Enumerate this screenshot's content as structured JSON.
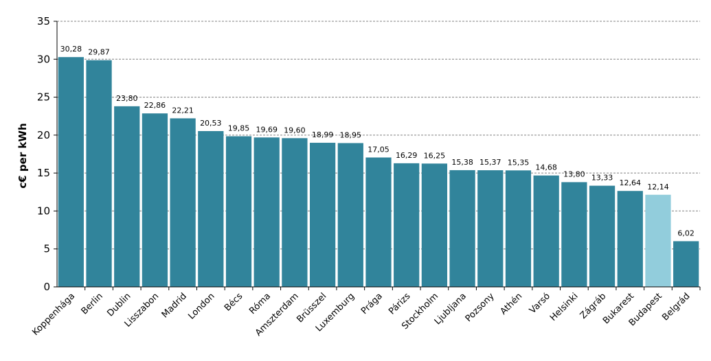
{
  "chart_data": {
    "type": "bar",
    "title": "",
    "xlabel": "",
    "ylabel": "c€ per kWh",
    "ylim": [
      0,
      35
    ],
    "yticks": [
      "0",
      "5",
      "10",
      "15",
      "20",
      "25",
      "30",
      "35"
    ],
    "grid": true,
    "legend": "none",
    "categories": [
      "Koppenhága",
      "Berlin",
      "Dublin",
      "Lisszabon",
      "Madrid",
      "London",
      "Bécs",
      "Róma",
      "Amszterdam",
      "Brüsszel",
      "Luxemburg",
      "Prága",
      "Párizs",
      "Stockholm",
      "Ljubljana",
      "Pozsony",
      "Athén",
      "Varsó",
      "Helsinki",
      "Zágráb",
      "Bukarest",
      "Budapest",
      "Belgrád"
    ],
    "values": [
      30.28,
      29.87,
      23.8,
      22.86,
      22.21,
      20.53,
      19.85,
      19.69,
      19.6,
      18.99,
      18.95,
      17.05,
      16.29,
      16.25,
      15.38,
      15.37,
      15.35,
      14.68,
      13.8,
      13.33,
      12.64,
      12.14,
      6.02
    ],
    "value_labels": [
      "30,28",
      "29,87",
      "23,80",
      "22,86",
      "22,21",
      "20,53",
      "19,85",
      "19,69",
      "19,60",
      "18,99",
      "18,95",
      "17,05",
      "16,29",
      "16,25",
      "15,38",
      "15,37",
      "15,35",
      "14,68",
      "13,80",
      "13,33",
      "12,64",
      "12,14",
      "6,02"
    ],
    "highlight_category": "Budapest",
    "colors": {
      "bar": "#31849b",
      "highlight": "#92cddc",
      "grid": "#808080",
      "axis": "#000000"
    }
  }
}
